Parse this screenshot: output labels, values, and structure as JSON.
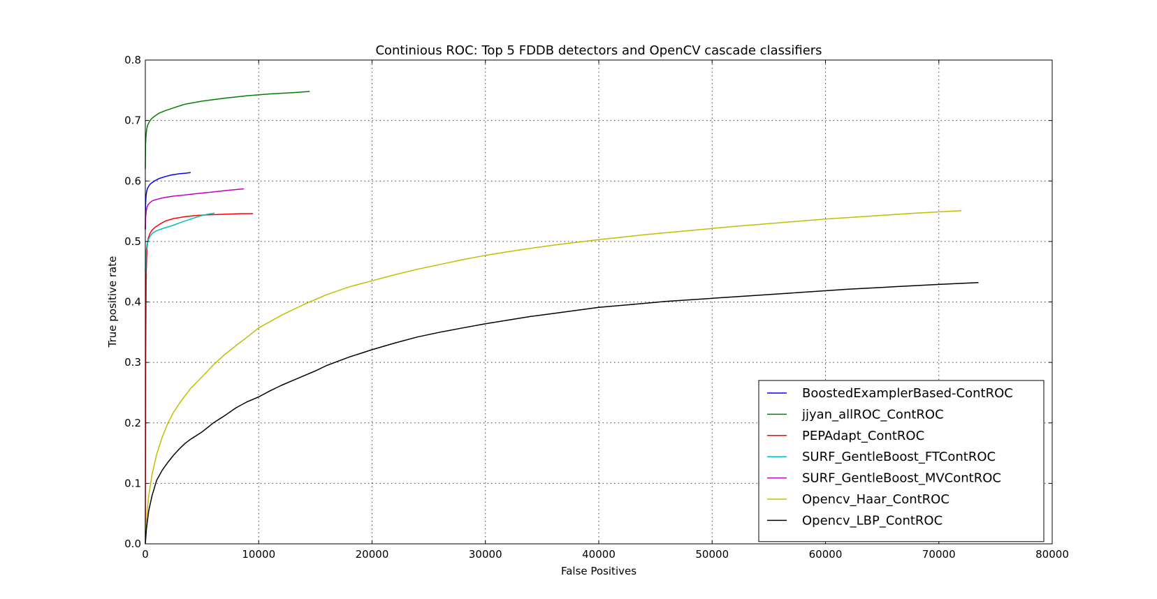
{
  "chart_data": {
    "type": "line",
    "title": "Continious ROC: Top 5 FDDB detectors and OpenCV cascade classifiers",
    "xlabel": "False Positives",
    "ylabel": "True positive rate",
    "xlim": [
      0,
      80000
    ],
    "ylim": [
      0,
      0.8
    ],
    "xticks": [
      0,
      10000,
      20000,
      30000,
      40000,
      50000,
      60000,
      70000,
      80000
    ],
    "yticks": [
      0.0,
      0.1,
      0.2,
      0.3,
      0.4,
      0.5,
      0.6,
      0.7,
      0.8
    ],
    "xtick_labels": [
      "0",
      "10000",
      "20000",
      "30000",
      "40000",
      "50000",
      "60000",
      "70000",
      "80000"
    ],
    "ytick_labels": [
      "0.0",
      "0.1",
      "0.2",
      "0.3",
      "0.4",
      "0.5",
      "0.6",
      "0.7",
      "0.8"
    ],
    "grid": true,
    "legend_position": "lower-right",
    "series": [
      {
        "name": "BoostedExamplerBased-ContROC",
        "color": "#0000ff",
        "x": [
          0,
          20,
          60,
          120,
          200,
          350,
          500,
          800,
          1200,
          1700,
          2300,
          3000,
          3600,
          4000
        ],
        "y": [
          0.52,
          0.56,
          0.575,
          0.583,
          0.588,
          0.593,
          0.596,
          0.6,
          0.604,
          0.607,
          0.61,
          0.612,
          0.613,
          0.614
        ]
      },
      {
        "name": "jjyan_allROC_ContROC",
        "color": "#008000",
        "x": [
          0,
          20,
          60,
          120,
          200,
          350,
          500,
          800,
          1200,
          1700,
          2500,
          3500,
          5000,
          7000,
          9000,
          11000,
          13000,
          14500
        ],
        "y": [
          0.62,
          0.66,
          0.675,
          0.685,
          0.692,
          0.698,
          0.702,
          0.707,
          0.712,
          0.716,
          0.721,
          0.727,
          0.732,
          0.737,
          0.741,
          0.744,
          0.746,
          0.748
        ]
      },
      {
        "name": "PEPAdapt_ContROC",
        "color": "#ff0000",
        "x": [
          0,
          30,
          80,
          150,
          250,
          400,
          600,
          900,
          1300,
          1800,
          2500,
          3500,
          4500,
          5500,
          7000,
          8500,
          9500
        ],
        "y": [
          0.0,
          0.3,
          0.45,
          0.49,
          0.505,
          0.513,
          0.519,
          0.524,
          0.529,
          0.534,
          0.538,
          0.541,
          0.543,
          0.544,
          0.545,
          0.546,
          0.546
        ]
      },
      {
        "name": "SURF_GentleBoost_FTContROC",
        "color": "#00bfbf",
        "x": [
          0,
          30,
          80,
          150,
          250,
          400,
          600,
          900,
          1300,
          1800,
          2500,
          3200,
          4000,
          4800,
          5500,
          6100
        ],
        "y": [
          0.45,
          0.47,
          0.485,
          0.495,
          0.502,
          0.508,
          0.513,
          0.517,
          0.52,
          0.523,
          0.527,
          0.532,
          0.537,
          0.542,
          0.545,
          0.547
        ]
      },
      {
        "name": "SURF_GentleBoost_MVContROC",
        "color": "#bf00bf",
        "x": [
          0,
          30,
          80,
          150,
          250,
          400,
          600,
          900,
          1300,
          1800,
          2500,
          3500,
          4500,
          5500,
          6500,
          7500,
          8700
        ],
        "y": [
          0.52,
          0.54,
          0.55,
          0.557,
          0.561,
          0.564,
          0.567,
          0.569,
          0.571,
          0.573,
          0.575,
          0.577,
          0.579,
          0.581,
          0.583,
          0.585,
          0.587
        ]
      },
      {
        "name": "Opencv_Haar_ContROC",
        "color": "#bfbf00",
        "x": [
          0,
          100,
          300,
          600,
          1000,
          1500,
          2000,
          2500,
          3000,
          3500,
          4000,
          5000,
          6000,
          7000,
          8000,
          9000,
          10000,
          12000,
          14000,
          16000,
          18000,
          20000,
          22000,
          24000,
          26000,
          28000,
          30000,
          33000,
          36000,
          40000,
          44000,
          48000,
          52000,
          56000,
          60000,
          64000,
          68000,
          72000
        ],
        "y": [
          0.0,
          0.04,
          0.08,
          0.115,
          0.148,
          0.177,
          0.2,
          0.218,
          0.232,
          0.245,
          0.257,
          0.276,
          0.296,
          0.313,
          0.328,
          0.342,
          0.357,
          0.378,
          0.396,
          0.412,
          0.425,
          0.435,
          0.445,
          0.454,
          0.462,
          0.47,
          0.477,
          0.486,
          0.494,
          0.503,
          0.511,
          0.518,
          0.525,
          0.531,
          0.537,
          0.542,
          0.547,
          0.551
        ]
      },
      {
        "name": "Opencv_LBP_ContROC",
        "color": "#000000",
        "x": [
          0,
          100,
          300,
          600,
          1000,
          1500,
          2000,
          2500,
          3000,
          3500,
          4000,
          5000,
          6000,
          7000,
          8000,
          9000,
          10000,
          11000,
          12000,
          13000,
          14000,
          15000,
          16000,
          17000,
          18000,
          19000,
          20000,
          22000,
          24000,
          26000,
          28000,
          30000,
          32000,
          34000,
          36000,
          38000,
          40000,
          43000,
          46000,
          50000,
          54000,
          58000,
          62000,
          66000,
          70000,
          73500
        ],
        "y": [
          0.0,
          0.025,
          0.055,
          0.08,
          0.105,
          0.122,
          0.135,
          0.147,
          0.157,
          0.166,
          0.173,
          0.185,
          0.2,
          0.212,
          0.225,
          0.235,
          0.243,
          0.253,
          0.262,
          0.27,
          0.278,
          0.286,
          0.295,
          0.302,
          0.309,
          0.315,
          0.321,
          0.332,
          0.342,
          0.35,
          0.357,
          0.364,
          0.37,
          0.376,
          0.381,
          0.386,
          0.391,
          0.396,
          0.401,
          0.406,
          0.411,
          0.416,
          0.421,
          0.425,
          0.429,
          0.432
        ]
      }
    ]
  }
}
